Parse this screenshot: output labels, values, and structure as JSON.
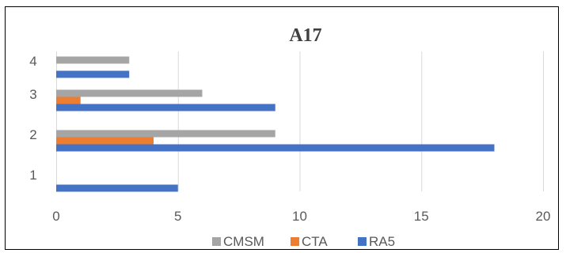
{
  "chart_data": {
    "type": "bar",
    "orientation": "horizontal",
    "title": "A17",
    "categories": [
      "1",
      "2",
      "3",
      "4"
    ],
    "series": [
      {
        "name": "RA5",
        "color": "#4472C4",
        "values": [
          5,
          18,
          9,
          3
        ]
      },
      {
        "name": "CTA",
        "color": "#ED7D31",
        "values": [
          0,
          4,
          1,
          0
        ]
      },
      {
        "name": "CMSM",
        "color": "#A5A5A5",
        "values": [
          0,
          9,
          6,
          3
        ]
      }
    ],
    "xlim": [
      0,
      20
    ],
    "x_ticks": [
      "0",
      "5",
      "10",
      "15",
      "20"
    ],
    "xlabel": "",
    "ylabel": "",
    "grid": "vertical",
    "legend": {
      "position": "bottom",
      "order": [
        "CMSM",
        "CTA",
        "RA5"
      ]
    }
  }
}
